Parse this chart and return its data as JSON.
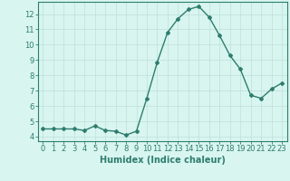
{
  "x": [
    0,
    1,
    2,
    3,
    4,
    5,
    6,
    7,
    8,
    9,
    10,
    11,
    12,
    13,
    14,
    15,
    16,
    17,
    18,
    19,
    20,
    21,
    22,
    23
  ],
  "y": [
    4.5,
    4.5,
    4.5,
    4.5,
    4.4,
    4.7,
    4.4,
    4.35,
    4.1,
    4.35,
    6.5,
    8.85,
    10.8,
    11.7,
    12.3,
    12.5,
    11.8,
    10.6,
    9.3,
    8.4,
    6.7,
    6.5,
    7.1,
    7.5
  ],
  "line_color": "#2e7d6e",
  "marker": "D",
  "marker_size": 2,
  "xlabel": "Humidex (Indice chaleur)",
  "xlabel_fontsize": 7,
  "ylabel_ticks": [
    4,
    5,
    6,
    7,
    8,
    9,
    10,
    11,
    12
  ],
  "xlim": [
    -0.5,
    23.5
  ],
  "ylim": [
    3.7,
    12.8
  ],
  "background_color": "#d8f5f0",
  "grid_color": "#c0e0db",
  "tick_fontsize": 6,
  "line_width": 1.0
}
